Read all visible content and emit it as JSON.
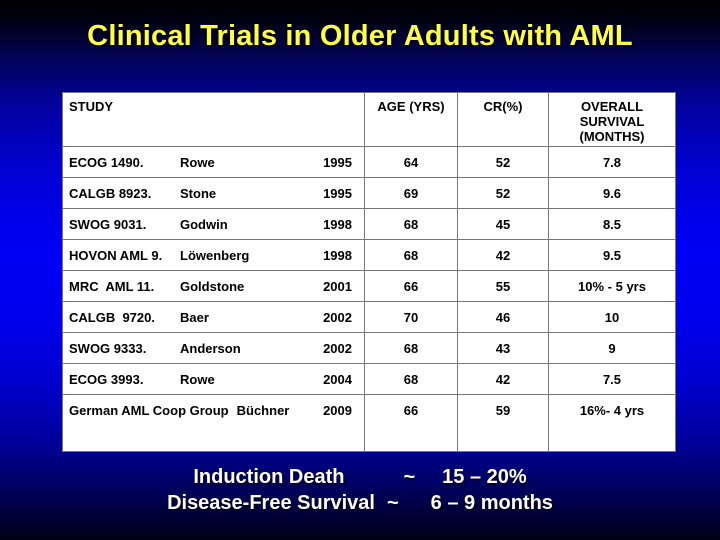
{
  "slide": {
    "title": "Clinical Trials in Older Adults with AML"
  },
  "colors": {
    "title_yellow": "#ffff3d",
    "background_blue": "#0000f0",
    "background_edge": "#000000",
    "table_background": "#ffffff",
    "table_text": "#000000",
    "table_gridline": "#787878",
    "summary_text": "#ffffff"
  },
  "table": {
    "header": {
      "study": "STUDY",
      "age": "AGE (YRS)",
      "cr": "CR(%)",
      "survival": "OVERALL SURVIVAL (MONTHS)"
    },
    "rows": [
      {
        "study": "ECOG 1490.",
        "author": "Rowe",
        "year": "1995",
        "age": "64",
        "cr": "52",
        "survival": "7.8"
      },
      {
        "study": "CALGB 8923.",
        "author": "Stone",
        "year": "1995",
        "age": "69",
        "cr": "52",
        "survival": "9.6"
      },
      {
        "study": "SWOG 9031.",
        "author": "Godwin",
        "year": "1998",
        "age": "68",
        "cr": "45",
        "survival": "8.5"
      },
      {
        "study": "HOVON AML 9.",
        "author": "Löwenberg",
        "year": "1998",
        "age": "68",
        "cr": "42",
        "survival": "9.5"
      },
      {
        "study": "MRC  AML 11.",
        "author": "Goldstone",
        "year": "2001",
        "age": "66",
        "cr": "55",
        "survival": "10% - 5 yrs"
      },
      {
        "study": "CALGB  9720.",
        "author": "Baer",
        "year": "2002",
        "age": "70",
        "cr": "46",
        "survival": "10"
      },
      {
        "study": "SWOG 9333.",
        "author": "Anderson",
        "year": "2002",
        "age": "68",
        "cr": "43",
        "survival": "9"
      },
      {
        "study": "ECOG 3993.",
        "author": "Rowe",
        "year": "2004",
        "age": "68",
        "cr": "42",
        "survival": "7.5"
      },
      {
        "study": "German AML Coop Group",
        "author": "Büchner",
        "year": "2009",
        "age": "66",
        "cr": "59",
        "survival": "16%- 4 yrs"
      }
    ]
  },
  "summary": {
    "lines": [
      {
        "label": "Induction Death",
        "tilde": "~",
        "value": "15 – 20%"
      },
      {
        "label": "Disease-Free Survival",
        "tilde": "~",
        "value": "6 – 9 months"
      }
    ]
  }
}
